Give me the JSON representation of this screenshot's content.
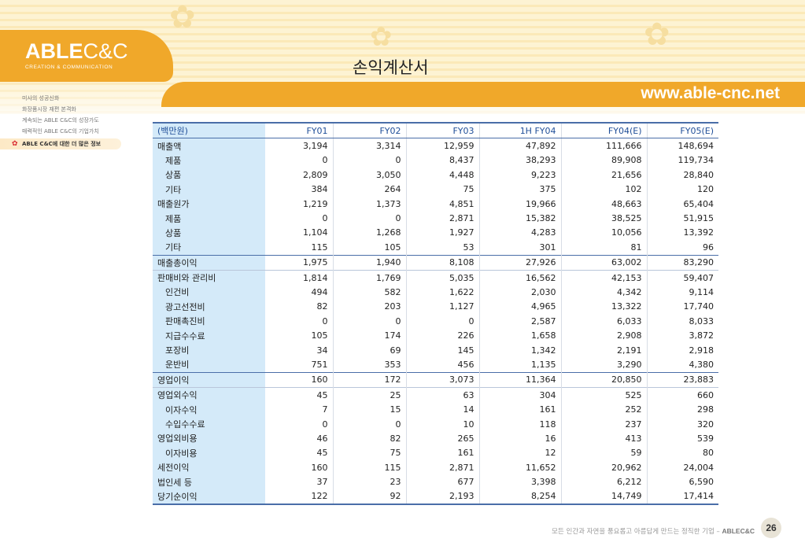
{
  "header": {
    "logo_bold": "ABLE",
    "logo_light": "C&C",
    "logo_sub": "CREATION & COMMUNICATION",
    "url": "www.able-cnc.net",
    "page_title": "손익계산서"
  },
  "sidebar": {
    "items": [
      {
        "label": "미사의 성공신화"
      },
      {
        "label": "화장품시장 재편 본격화"
      },
      {
        "label": "계속되는 ABLE C&C의 성장가도"
      },
      {
        "label": "매력적인 ABLE C&C의 기업가치"
      },
      {
        "label": "ABLE C&C에 대한 더 많은 정보",
        "active": true
      }
    ]
  },
  "table": {
    "header": [
      "(백만원)",
      "FY01",
      "FY02",
      "FY03",
      "1H FY04",
      "FY04(E)",
      "FY05(E)"
    ],
    "rows": [
      {
        "label": "매출액",
        "indent": false,
        "values": [
          "3,194",
          "3,314",
          "12,959",
          "47,892",
          "111,666",
          "148,694"
        ]
      },
      {
        "label": "제품",
        "indent": true,
        "values": [
          "0",
          "0",
          "8,437",
          "38,293",
          "89,908",
          "119,734"
        ]
      },
      {
        "label": "상품",
        "indent": true,
        "values": [
          "2,809",
          "3,050",
          "4,448",
          "9,223",
          "21,656",
          "28,840"
        ]
      },
      {
        "label": "기타",
        "indent": true,
        "values": [
          "384",
          "264",
          "75",
          "375",
          "102",
          "120"
        ]
      },
      {
        "label": "매출원가",
        "indent": false,
        "values": [
          "1,219",
          "1,373",
          "4,851",
          "19,966",
          "48,663",
          "65,404"
        ]
      },
      {
        "label": "제품",
        "indent": true,
        "values": [
          "0",
          "0",
          "2,871",
          "15,382",
          "38,525",
          "51,915"
        ]
      },
      {
        "label": "상품",
        "indent": true,
        "values": [
          "1,104",
          "1,268",
          "1,927",
          "4,283",
          "10,056",
          "13,392"
        ]
      },
      {
        "label": "기타",
        "indent": true,
        "values": [
          "115",
          "105",
          "53",
          "301",
          "81",
          "96"
        ]
      },
      {
        "label": "매출총이익",
        "indent": false,
        "sep": "strong",
        "values": [
          "1,975",
          "1,940",
          "8,108",
          "27,926",
          "63,002",
          "83,290"
        ]
      },
      {
        "label": "판매비와 관리비",
        "indent": false,
        "sep": "light",
        "values": [
          "1,814",
          "1,769",
          "5,035",
          "16,562",
          "42,153",
          "59,407"
        ]
      },
      {
        "label": "인건비",
        "indent": true,
        "values": [
          "494",
          "582",
          "1,622",
          "2,030",
          "4,342",
          "9,114"
        ]
      },
      {
        "label": "광고선전비",
        "indent": true,
        "values": [
          "82",
          "203",
          "1,127",
          "4,965",
          "13,322",
          "17,740"
        ]
      },
      {
        "label": "판매촉진비",
        "indent": true,
        "values": [
          "0",
          "0",
          "0",
          "2,587",
          "6,033",
          "8,033"
        ]
      },
      {
        "label": "지급수수료",
        "indent": true,
        "values": [
          "105",
          "174",
          "226",
          "1,658",
          "2,908",
          "3,872"
        ]
      },
      {
        "label": "포장비",
        "indent": true,
        "values": [
          "34",
          "69",
          "145",
          "1,342",
          "2,191",
          "2,918"
        ]
      },
      {
        "label": "운반비",
        "indent": true,
        "values": [
          "751",
          "353",
          "456",
          "1,135",
          "3,290",
          "4,380"
        ]
      },
      {
        "label": "영업이익",
        "indent": false,
        "sep": "strong",
        "values": [
          "160",
          "172",
          "3,073",
          "11,364",
          "20,850",
          "23,883"
        ]
      },
      {
        "label": "영업외수익",
        "indent": false,
        "sep": "light",
        "values": [
          "45",
          "25",
          "63",
          "304",
          "525",
          "660"
        ]
      },
      {
        "label": "이자수익",
        "indent": true,
        "values": [
          "7",
          "15",
          "14",
          "161",
          "252",
          "298"
        ]
      },
      {
        "label": "수입수수료",
        "indent": true,
        "values": [
          "0",
          "0",
          "10",
          "118",
          "237",
          "320"
        ]
      },
      {
        "label": "영업외비용",
        "indent": false,
        "values": [
          "46",
          "82",
          "265",
          "16",
          "413",
          "539"
        ]
      },
      {
        "label": "이자비용",
        "indent": true,
        "values": [
          "45",
          "75",
          "161",
          "12",
          "59",
          "80"
        ]
      },
      {
        "label": "세전이익",
        "indent": false,
        "values": [
          "160",
          "115",
          "2,871",
          "11,652",
          "20,962",
          "24,004"
        ]
      },
      {
        "label": "법인세 등",
        "indent": false,
        "values": [
          "37",
          "23",
          "677",
          "3,398",
          "6,212",
          "6,590"
        ]
      },
      {
        "label": "당기순이익",
        "indent": false,
        "values": [
          "122",
          "92",
          "2,193",
          "8,254",
          "14,749",
          "17,414"
        ]
      }
    ]
  },
  "footer": {
    "tagline": "모든 인간과 자연을 풍요롭고 아름답게 만드는 정직한 기업 –",
    "brand": "ABLEC&C",
    "page_number": "26"
  },
  "colors": {
    "accent": "#f0a82a",
    "table_header": "#1f4e98",
    "label_bg": "#d4eaf9"
  }
}
